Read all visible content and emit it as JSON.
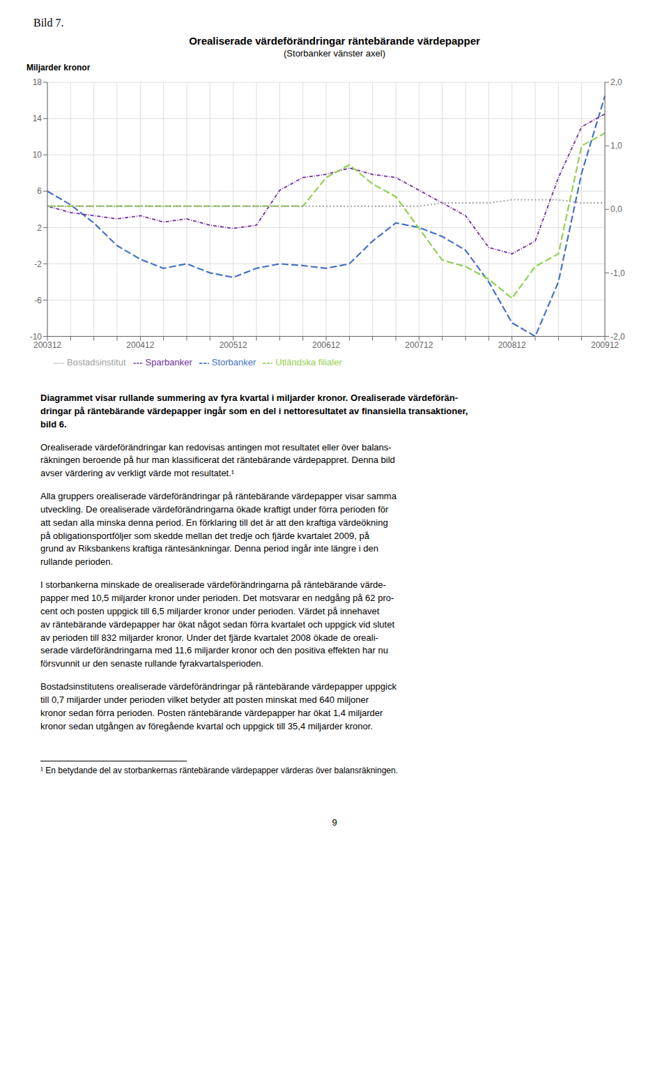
{
  "chart_data": {
    "type": "line",
    "title": "Orealiserade värdeförändringar räntebärande värdepapper",
    "subtitle": "(Storbanker vänster axel)",
    "y_label": "Miljarder kronor",
    "categories": [
      "200312",
      null,
      null,
      null,
      "200412",
      null,
      null,
      null,
      "200512",
      null,
      null,
      null,
      "200612",
      null,
      null,
      null,
      "200712",
      null,
      null,
      null,
      "200812",
      null,
      null,
      null,
      "200912"
    ],
    "series": [
      {
        "name": "Storbanker",
        "color": "#4472C4",
        "line_style": "dashed",
        "values": [
          6.0,
          4.5,
          2.5,
          0.0,
          -1.5,
          -2.5,
          -2.0,
          -3.0,
          -3.5,
          -2.5,
          -2.0,
          -2.2,
          -2.5,
          -2.0,
          0.5,
          2.5,
          2.0,
          1.0,
          -0.5,
          -4.0,
          -8.5,
          -10.0,
          -4.0,
          8.0,
          16.5
        ]
      },
      {
        "name": "Sparbanker",
        "color": "#7030A0",
        "line_style": "dashdot",
        "axis": "y2",
        "values": [
          0.05,
          -0.05,
          -0.1,
          -0.15,
          -0.1,
          -0.2,
          -0.15,
          -0.25,
          -0.3,
          -0.25,
          0.3,
          0.5,
          0.55,
          0.65,
          0.55,
          0.5,
          0.3,
          0.1,
          -0.1,
          -0.6,
          -0.7,
          -0.5,
          0.5,
          1.3,
          1.5
        ]
      },
      {
        "name": "Utländska filialer",
        "color": "#92D050",
        "line_style": "dashed",
        "axis": "y2",
        "values": [
          0.05,
          0.05,
          0.05,
          0.05,
          0.05,
          0.05,
          0.05,
          0.05,
          0.05,
          0.05,
          0.05,
          0.05,
          0.5,
          0.7,
          0.4,
          0.2,
          -0.3,
          -0.8,
          -0.9,
          -1.1,
          -1.4,
          -0.9,
          -0.7,
          1.0,
          1.2
        ]
      },
      {
        "name": "Bostadsinstitut",
        "color": "#A0A0A0",
        "line_style": "dotted",
        "axis": "y2",
        "values": [
          0.05,
          0.05,
          0.05,
          0.05,
          0.05,
          0.05,
          0.05,
          0.05,
          0.05,
          0.05,
          0.05,
          0.05,
          0.05,
          0.05,
          0.05,
          0.05,
          0.05,
          0.1,
          0.1,
          0.1,
          0.15,
          0.15,
          0.15,
          0.1,
          0.1
        ]
      }
    ],
    "ylim": [
      -10,
      18
    ],
    "yticks": [
      -10,
      -6,
      -2,
      2,
      6,
      10,
      14,
      18
    ],
    "y2lim": [
      -2.0,
      2.0
    ],
    "y2ticks": [
      {
        "value": -2.0,
        "label": "-2,0"
      },
      {
        "value": -1.0,
        "label": "-1,0"
      },
      {
        "value": 0.0,
        "label": "0,0"
      },
      {
        "value": 1.0,
        "label": "1,0"
      },
      {
        "value": 2.0,
        "label": "2,0"
      }
    ],
    "grid": true,
    "legend": "bottom",
    "annotations": [
      "Bild 7.",
      "Diagrammet visar rullande summering av fyra kvartal i miljarder kronor. Orealiserade värdeförän-\ndringar på räntebärande värdepapper ingår som en del i nettoresultatet av finansiella transaktioner,\nbild 6.",
      "Orealiserade värdeförändringar kan redovisas antingen mot resultatet eller över balans-\nräkningen beroende på hur man klassificerat det räntebärande värdepappret. Denna bild\navser värdering av verkligt värde mot resultatet.¹",
      "Alla gruppers orealiserade värdeförändringar på räntebärande värdepapper visar samma\nutveckling. De orealiserade värdeförändringarna ökade kraftigt under förra perioden för\natt sedan alla minska denna period. En förklaring till det är att den kraftiga värdeökning\npå obligationsportföljer som skedde mellan det tredje och fjärde kvartalet 2009, på\ngrund av Riksbankens kraftiga räntesänkningar. Denna period ingår inte längre i den\nrullande perioden.",
      "I storbankerna minskade de orealiserade värdeförändringarna på räntebärande värde-\npapper med 10,5 miljarder kronor under perioden. Det motsvarar en nedgång på 62 pro-\ncent och posten uppgick till 6,5 miljarder kronor under perioden. Värdet på innehavet\nav räntebärande värdepapper har ökat något sedan förra kvartalet och uppgick vid slutet\nav perioden till 832 miljarder kronor. Under det fjärde kvartalet 2008 ökade de oreali-\nserade värdeförändringarna med 11,6 miljarder kronor och den positiva effekten har nu\nförsvunnit ur den senaste rullande fyrakvartalsperioden.",
      "Bostadsinstitutens orealiserade värdeförändringar på räntebärande värdepapper uppgick\ntill 0,7 miljarder under perioden vilket betyder att posten minskat med 640 miljoner\nkronor sedan förra perioden. Posten räntebärande värdepapper har ökat 1,4 miljarder\nkronor sedan utgången av föregående kvartal och uppgick till 35,4 miljarder kronor.",
      "¹ En betydande del av storbankernas räntebärande värdepapper värderas över balansräkningen.",
      "9"
    ]
  }
}
